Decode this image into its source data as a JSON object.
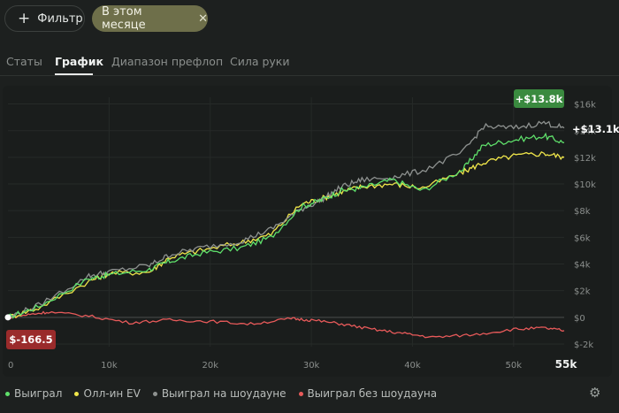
{
  "toolbar": {
    "filter_label": "Фильтр",
    "active_filter_label": "В этом месяце",
    "clear_filter_icon": "✕"
  },
  "tabs": [
    {
      "label": "Статы",
      "active": false
    },
    {
      "label": "График",
      "active": true
    },
    {
      "label": "Диапазон префлоп",
      "active": false
    },
    {
      "label": "Сила руки",
      "active": false
    }
  ],
  "chart_data": {
    "type": "line",
    "x_ticks": [
      "0",
      "10k",
      "20k",
      "30k",
      "40k",
      "50k",
      "55k"
    ],
    "y_ticks": [
      "$16k",
      "$14k",
      "$12k",
      "$10k",
      "$8k",
      "$6k",
      "$4k",
      "$2k",
      "$0",
      "$-2k"
    ],
    "xlim": [
      0,
      55000
    ],
    "ylim": [
      -2200,
      16500
    ],
    "series": [
      {
        "name": "Выиграл",
        "color": "#5fe06b",
        "x": [
          0,
          3000,
          8000,
          10000,
          14000,
          16000,
          19000,
          23000,
          26000,
          29000,
          31000,
          33000,
          35000,
          38000,
          41000,
          45000,
          47000,
          50000,
          53000,
          55000
        ],
        "y": [
          0,
          800,
          2900,
          3200,
          3600,
          4200,
          4800,
          5200,
          6000,
          8300,
          8800,
          9500,
          9700,
          10300,
          9500,
          11100,
          12900,
          13300,
          13600,
          13100
        ]
      },
      {
        "name": "Олл-ин EV",
        "color": "#f0e64a",
        "x": [
          0,
          3000,
          8000,
          10000,
          14000,
          16000,
          19000,
          23000,
          26000,
          29000,
          31000,
          33000,
          35000,
          38000,
          41000,
          45000,
          47000,
          50000,
          53000,
          55000
        ],
        "y": [
          0,
          700,
          2700,
          3300,
          3400,
          4500,
          5000,
          5600,
          6200,
          8500,
          8900,
          9400,
          9800,
          10000,
          9700,
          10900,
          11600,
          12100,
          12300,
          12000
        ]
      },
      {
        "name": "Выиграл на шоудауне",
        "color": "#8e9290",
        "x": [
          0,
          3000,
          8000,
          10000,
          14000,
          16000,
          19000,
          23000,
          26000,
          29000,
          31000,
          33000,
          35000,
          38000,
          41000,
          45000,
          47000,
          50000,
          53000,
          55000
        ],
        "y": [
          0,
          900,
          3100,
          3400,
          3900,
          4700,
          5200,
          5700,
          6600,
          8100,
          8800,
          9800,
          10300,
          10500,
          11000,
          12400,
          14300,
          14200,
          14600,
          14200
        ]
      },
      {
        "name": "Выиграл без шоудауна",
        "color": "#e85a5a",
        "x": [
          0,
          2000,
          4000,
          8000,
          12000,
          16000,
          20000,
          24000,
          28000,
          30000,
          33000,
          36000,
          39000,
          42000,
          46000,
          50000,
          53000,
          55000
        ],
        "y": [
          0,
          200,
          400,
          100,
          -400,
          -200,
          -300,
          -500,
          -100,
          -200,
          -500,
          -900,
          -1200,
          -1500,
          -1300,
          -900,
          -800,
          -1000
        ]
      }
    ],
    "end_labels": [
      {
        "text": "+$13.8k",
        "color": "#3a8a3f"
      },
      {
        "text": "+$13.1k",
        "color": "#ffffff"
      },
      {
        "text": "$-166.5",
        "color": "#9a2b2b"
      }
    ],
    "grid": true,
    "legend_position": "bottom-left"
  },
  "icons": {
    "settings": "gear-icon",
    "add": "plus-icon",
    "close": "close-icon"
  },
  "colors": {
    "background": "#1d201f",
    "panel": "#1a1d1c",
    "chip_active": "#6e6f4a"
  }
}
